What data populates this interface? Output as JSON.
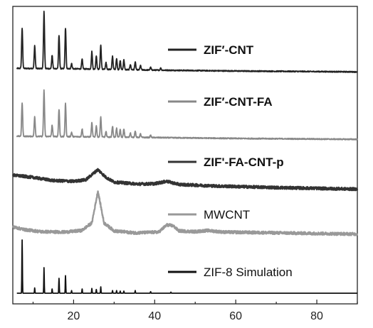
{
  "chart_data": {
    "type": "line",
    "title": "",
    "xlabel": "",
    "ylabel": "",
    "xlim": [
      5,
      90
    ],
    "x_ticks": [
      20,
      40,
      60,
      80
    ],
    "y_ticks_labeled": false,
    "grid": false,
    "legend_placement": "inline-right-of-each-trace",
    "series": [
      {
        "name": "ZIF′-CNT",
        "color": "#222222",
        "label_bold": true,
        "style": "crystalline",
        "baseline": [
          [
            6,
            0.06
          ],
          [
            20,
            0.05
          ],
          [
            40,
            0.02
          ],
          [
            60,
            0.0
          ],
          [
            90,
            -0.02
          ]
        ],
        "peaks": [
          [
            7.3,
            0.9
          ],
          [
            10.4,
            0.52
          ],
          [
            12.7,
            1.3
          ],
          [
            14.7,
            0.3
          ],
          [
            16.4,
            0.75
          ],
          [
            18.0,
            0.92
          ],
          [
            19.5,
            0.12
          ],
          [
            22.1,
            0.22
          ],
          [
            24.5,
            0.4
          ],
          [
            25.6,
            0.3
          ],
          [
            26.7,
            0.55
          ],
          [
            28.0,
            0.15
          ],
          [
            29.6,
            0.3
          ],
          [
            30.6,
            0.25
          ],
          [
            31.5,
            0.2
          ],
          [
            32.4,
            0.22
          ],
          [
            34.0,
            0.12
          ],
          [
            35.2,
            0.18
          ],
          [
            36.5,
            0.1
          ],
          [
            39.0,
            0.06
          ],
          [
            41.5,
            0.05
          ]
        ]
      },
      {
        "name": "ZIF′-CNT-FA",
        "color": "#888888",
        "label_bold": true,
        "style": "crystalline",
        "baseline": [
          [
            6,
            0.05
          ],
          [
            20,
            0.04
          ],
          [
            40,
            0.02
          ],
          [
            60,
            0.0
          ],
          [
            90,
            -0.02
          ]
        ],
        "peaks": [
          [
            7.3,
            0.75
          ],
          [
            10.4,
            0.45
          ],
          [
            12.7,
            1.05
          ],
          [
            14.7,
            0.25
          ],
          [
            16.4,
            0.62
          ],
          [
            18.0,
            0.75
          ],
          [
            19.5,
            0.1
          ],
          [
            22.1,
            0.18
          ],
          [
            24.5,
            0.32
          ],
          [
            25.6,
            0.25
          ],
          [
            26.7,
            0.45
          ],
          [
            28.0,
            0.12
          ],
          [
            29.6,
            0.25
          ],
          [
            30.6,
            0.2
          ],
          [
            31.5,
            0.17
          ],
          [
            32.4,
            0.18
          ],
          [
            34.0,
            0.1
          ],
          [
            35.2,
            0.15
          ],
          [
            36.5,
            0.08
          ],
          [
            39.0,
            0.05
          ]
        ]
      },
      {
        "name": "ZIF'-FA-CNT-p",
        "color": "#333333",
        "label_bold": true,
        "style": "amorphous",
        "baseline": [
          [
            5,
            0.28
          ],
          [
            10,
            0.22
          ],
          [
            15,
            0.14
          ],
          [
            20,
            0.12
          ],
          [
            23,
            0.16
          ],
          [
            26,
            0.42
          ],
          [
            28,
            0.22
          ],
          [
            30,
            0.1
          ],
          [
            36,
            0.05
          ],
          [
            40,
            0.06
          ],
          [
            43,
            0.12
          ],
          [
            46,
            0.04
          ],
          [
            55,
            0.0
          ],
          [
            70,
            -0.04
          ],
          [
            90,
            -0.08
          ]
        ],
        "peaks": []
      },
      {
        "name": "MWCNT",
        "color": "#999999",
        "label_bold": false,
        "style": "amorphous",
        "baseline": [
          [
            5,
            0.15
          ],
          [
            8,
            0.08
          ],
          [
            12,
            0.03
          ],
          [
            18,
            0.02
          ],
          [
            22,
            0.06
          ],
          [
            24.5,
            0.25
          ],
          [
            26.0,
            1.05
          ],
          [
            27.5,
            0.25
          ],
          [
            30,
            0.05
          ],
          [
            35,
            0.0
          ],
          [
            41,
            0.02
          ],
          [
            43.0,
            0.2
          ],
          [
            44.5,
            0.18
          ],
          [
            46,
            0.05
          ],
          [
            50,
            0.03
          ],
          [
            53,
            0.06
          ],
          [
            57,
            0.02
          ],
          [
            70,
            0.0
          ],
          [
            90,
            -0.03
          ]
        ],
        "peaks": []
      },
      {
        "name": "ZIF-8 Simulation",
        "color": "#111111",
        "label_bold": false,
        "style": "stick",
        "baseline": [
          [
            6,
            0.0
          ],
          [
            90,
            0.0
          ]
        ],
        "peaks": [
          [
            7.3,
            1.0
          ],
          [
            10.4,
            0.1
          ],
          [
            12.7,
            0.48
          ],
          [
            14.7,
            0.08
          ],
          [
            16.4,
            0.28
          ],
          [
            18.0,
            0.33
          ],
          [
            19.5,
            0.05
          ],
          [
            22.1,
            0.08
          ],
          [
            24.5,
            0.09
          ],
          [
            25.6,
            0.07
          ],
          [
            26.7,
            0.12
          ],
          [
            29.6,
            0.05
          ],
          [
            30.6,
            0.05
          ],
          [
            31.5,
            0.04
          ],
          [
            32.4,
            0.04
          ],
          [
            35.2,
            0.05
          ],
          [
            39.0,
            0.03
          ],
          [
            44.0,
            0.02
          ]
        ]
      }
    ]
  }
}
